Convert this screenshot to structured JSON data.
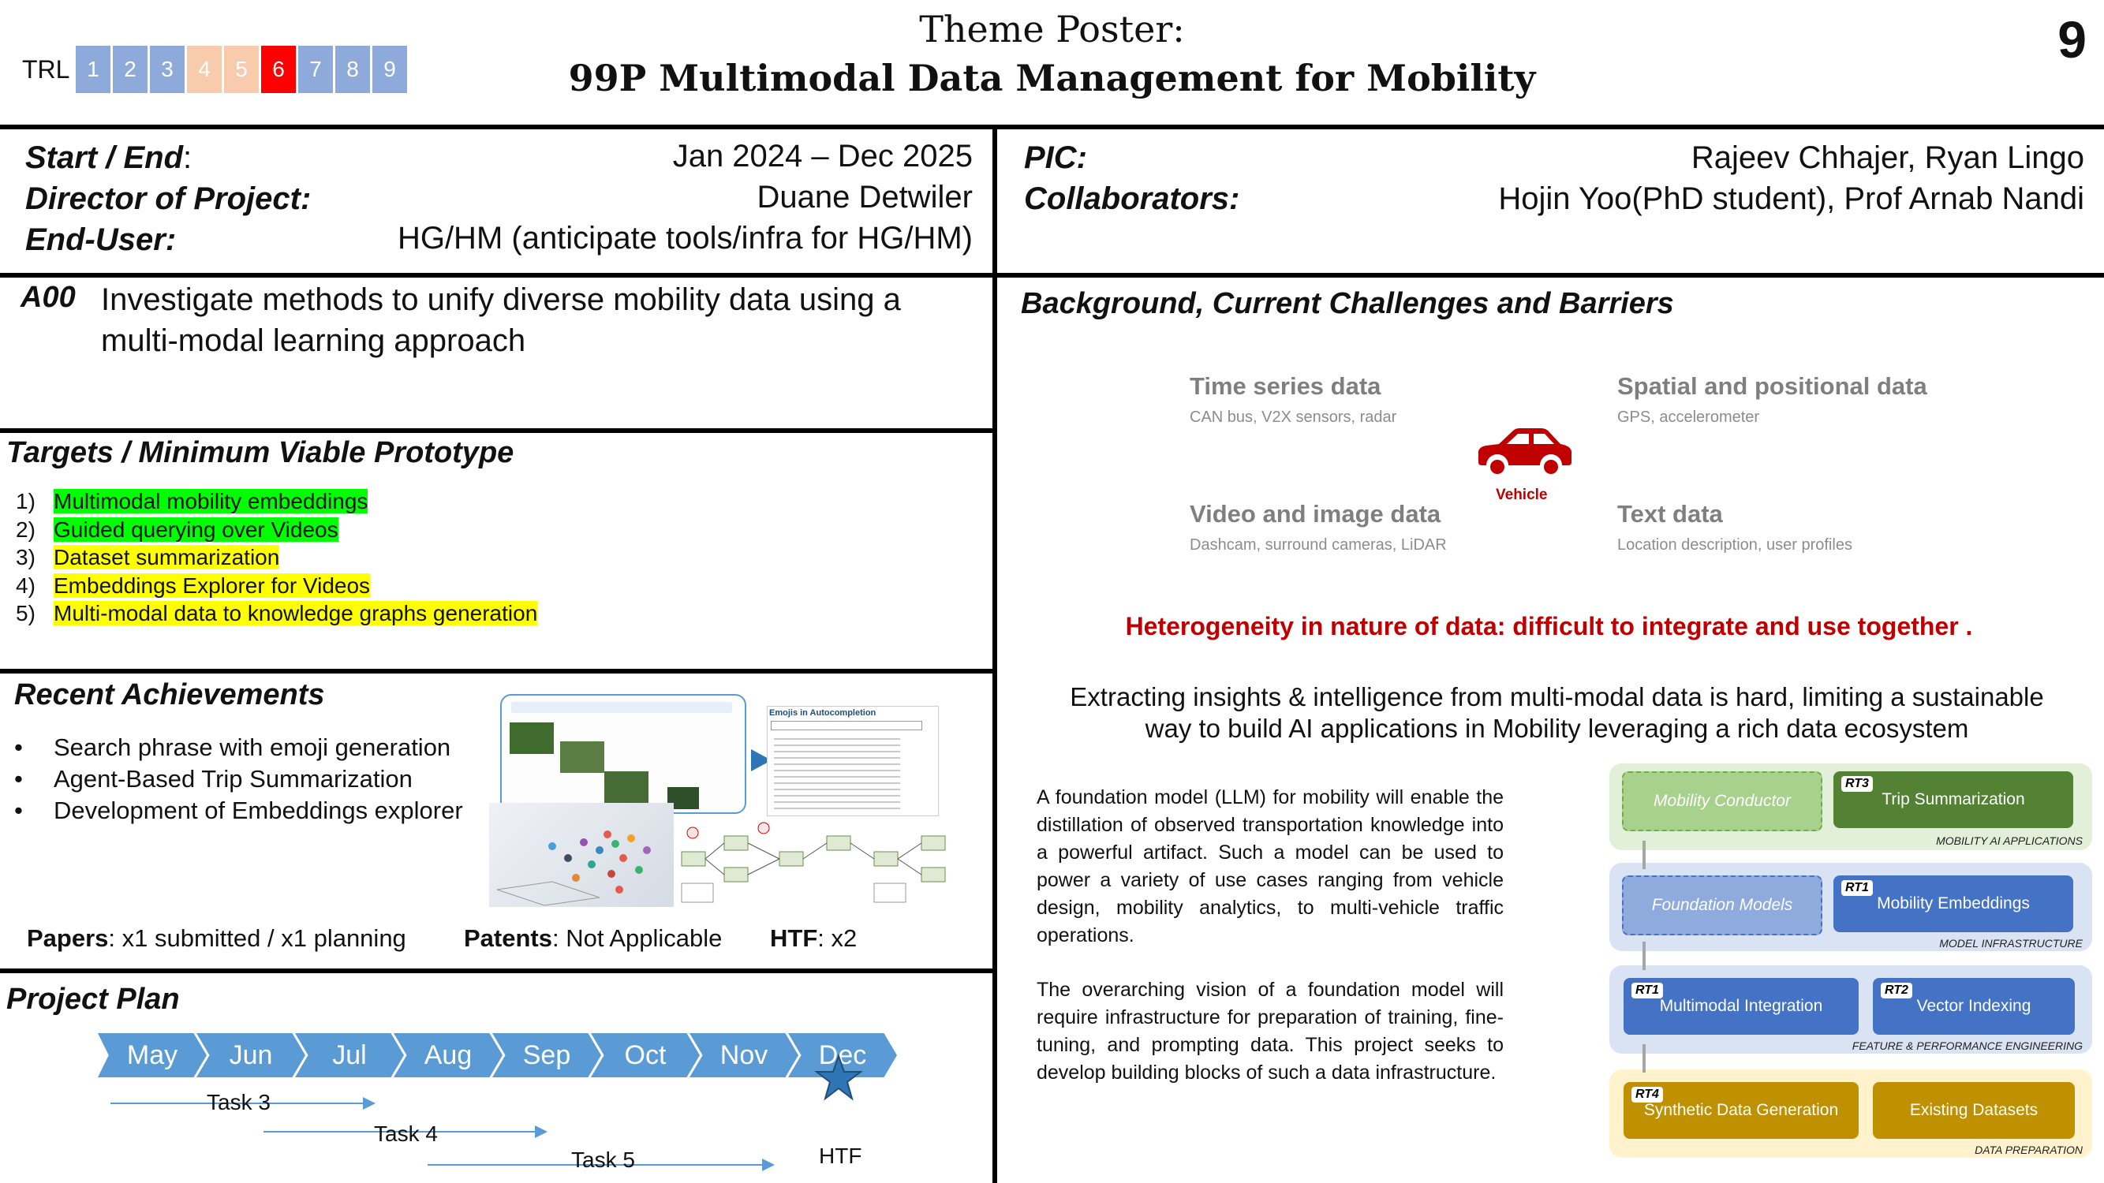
{
  "header": {
    "trl_label": "TRL",
    "trl_levels": [
      "1",
      "2",
      "3",
      "4",
      "5",
      "6",
      "7",
      "8",
      "9"
    ],
    "trl_active": "6",
    "title_line1": "Theme Poster:",
    "title_line2": "99P Multimodal Data Management for Mobility",
    "page_number": "9"
  },
  "colors": {
    "trl_low": "#8eaadb",
    "trl_mid": "#f8cbad",
    "trl_active": "#ff0000",
    "accent_blue": "#5b9bd5",
    "red_text": "#c00000"
  },
  "project_info": {
    "start_end_label": "Start / End",
    "start_end_colon": ":",
    "start_end_value": "Jan 2024 – Dec 2025",
    "director_label": "Director of Project:",
    "director_value": "Duane Detwiler",
    "end_user_label": "End-User:",
    "end_user_value": "HG/HM (anticipate tools/infra for HG/HM)",
    "pic_label": "PIC:",
    "pic_value": "Rajeev Chhajer, Ryan Lingo",
    "collaborators_label": "Collaborators:",
    "collaborators_value": "Hojin Yoo(PhD student), Prof Arnab Nandi"
  },
  "objective": {
    "code": "A00",
    "line1": "Investigate methods to unify diverse mobility data using a",
    "line2": "multi-modal learning approach"
  },
  "targets": {
    "title": "Targets / Minimum Viable Prototype",
    "items": [
      {
        "num": "1)",
        "text": "Multimodal mobility embeddings"
      },
      {
        "num": "2)",
        "text": "Guided querying over Videos"
      },
      {
        "num": "3)",
        "text": "Dataset summarization"
      },
      {
        "num": "4)",
        "text": "Embeddings Explorer for Videos"
      },
      {
        "num": "5)",
        "text": "Multi-modal data to knowledge graphs generation"
      }
    ]
  },
  "achievements": {
    "title": "Recent Achievements",
    "bullet": "•",
    "items": [
      "Search phrase with emoji generation",
      "Agent-Based Trip Summarization",
      "Development of Embeddings explorer"
    ],
    "screenshot_caption": "Emojis in Autocompletion",
    "papers_label": "Papers",
    "papers_value": ": x1 submitted / x1 planning",
    "patents_label": "Patents",
    "patents_value": ": Not Applicable",
    "htf_label": "HTF",
    "htf_value": ": x2"
  },
  "plan": {
    "title": "Project Plan",
    "months": [
      "May",
      "Jun",
      "Jul",
      "Aug",
      "Sep",
      "Oct",
      "Nov",
      "Dec"
    ],
    "tasks": [
      "Task 3",
      "Task 4",
      "Task 5"
    ],
    "milestone": "HTF"
  },
  "background": {
    "title": "Background, Current Challenges and Barriers",
    "categories": [
      {
        "title": "Time series data",
        "sub": "CAN bus, V2X sensors, radar"
      },
      {
        "title": "Spatial and positional data",
        "sub": "GPS, accelerometer"
      },
      {
        "title": "Video and image data",
        "sub": "Dashcam, surround cameras, LiDAR"
      },
      {
        "title": "Text data",
        "sub": "Location description, user profiles"
      }
    ],
    "vehicle_label": "Vehicle",
    "heterogeneity": "Heterogeneity in nature of data: difficult to integrate and use together .",
    "insight_line1": "Extracting insights & intelligence from multi-modal data is hard, limiting a sustainable",
    "insight_line2": "way to build AI applications in Mobility leveraging a rich data ecosystem",
    "para1": "A foundation model (LLM) for mobility will enable the distillation of observed transportation knowledge into a powerful artifact. Such a model can be used to power a variety of use cases ranging from vehicle design, mobility analytics, to multi-vehicle traffic operations.",
    "para2": "The overarching vision of a foundation model will require infrastructure for preparation of training, fine-tuning, and prompting data. This project seeks to develop building blocks of such a data infrastructure."
  },
  "architecture": {
    "layers": [
      {
        "caption": "MOBILITY AI APPLICATIONS",
        "left": "Mobility Conductor",
        "right_tag": "RT3",
        "right": "Trip Summarization"
      },
      {
        "caption": "MODEL INFRASTRUCTURE",
        "left": "Foundation Models",
        "right_tag": "RT1",
        "right": "Mobility Embeddings"
      },
      {
        "caption": "FEATURE & PERFORMANCE ENGINEERING",
        "left_tag": "RT1",
        "left": "Multimodal Integration",
        "right_tag": "RT2",
        "right": "Vector Indexing"
      },
      {
        "caption": "DATA PREPARATION",
        "left_tag": "RT4",
        "left": "Synthetic Data Generation",
        "right": "Existing Datasets"
      }
    ]
  }
}
